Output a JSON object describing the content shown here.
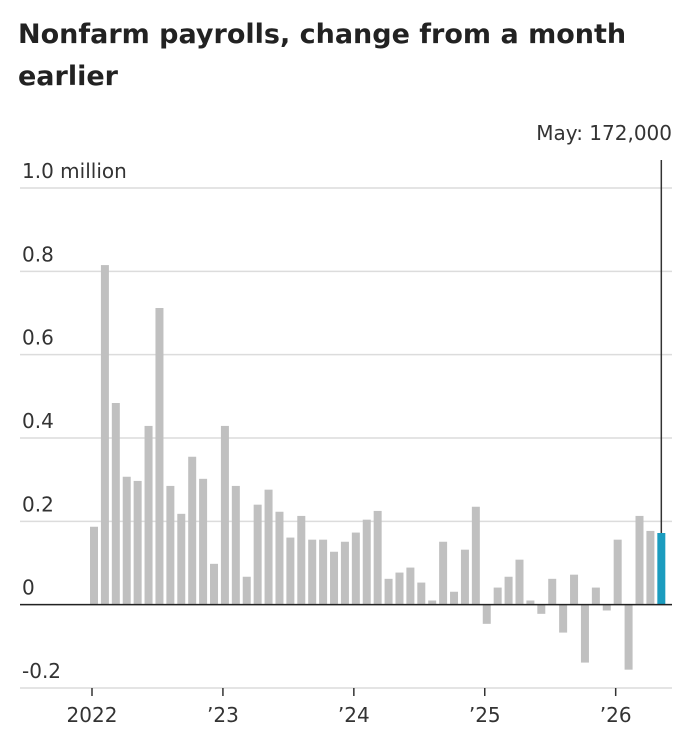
{
  "chart_data": {
    "type": "bar",
    "title": "Nonfarm payrolls, change from a month earlier",
    "categories": [
      "2022",
      null,
      null,
      null,
      null,
      null,
      null,
      null,
      null,
      null,
      null,
      null,
      "’23",
      null,
      null,
      null,
      null,
      null,
      null,
      null,
      null,
      null,
      null,
      null,
      "’24",
      null,
      null,
      null,
      null,
      null,
      null,
      null,
      null,
      null,
      null,
      null,
      "’25",
      null,
      null,
      null,
      null,
      null,
      null,
      null,
      null,
      null,
      null,
      null,
      "’26",
      null,
      null,
      null,
      null
    ],
    "values": [
      0.187,
      0.815,
      0.484,
      0.307,
      0.297,
      0.429,
      0.712,
      0.285,
      0.218,
      0.355,
      0.302,
      0.098,
      0.429,
      0.285,
      0.067,
      0.24,
      0.276,
      0.223,
      0.161,
      0.213,
      0.156,
      0.156,
      0.127,
      0.151,
      0.173,
      0.204,
      0.225,
      0.062,
      0.077,
      0.089,
      0.053,
      0.01,
      0.151,
      0.031,
      0.132,
      0.235,
      -0.046,
      0.041,
      0.067,
      0.108,
      0.01,
      -0.022,
      0.062,
      -0.067,
      0.072,
      -0.139,
      0.041,
      -0.014,
      0.156,
      -0.156,
      0.213,
      0.177,
      0.172
    ],
    "value_labels": [
      null,
      null,
      null,
      null,
      null,
      null,
      null,
      null,
      null,
      null,
      null,
      null,
      null,
      null,
      null,
      null,
      null,
      null,
      null,
      null,
      null,
      null,
      null,
      null,
      null,
      null,
      null,
      null,
      null,
      null,
      null,
      null,
      null,
      null,
      null,
      null,
      null,
      null,
      null,
      null,
      null,
      null,
      null,
      null,
      null,
      null,
      null,
      null,
      null,
      null,
      null,
      null,
      "May: 172,000"
    ],
    "color": "#c0c0c0",
    "highlight_color": "#1b9cbf",
    "ylim": [
      -0.2,
      1.0
    ],
    "yticks": [
      -0.2,
      0,
      0.2,
      0.4,
      0.6,
      0.8,
      {
        "value": 1.0,
        "label": "1.0 million"
      }
    ],
    "grid": true
  }
}
